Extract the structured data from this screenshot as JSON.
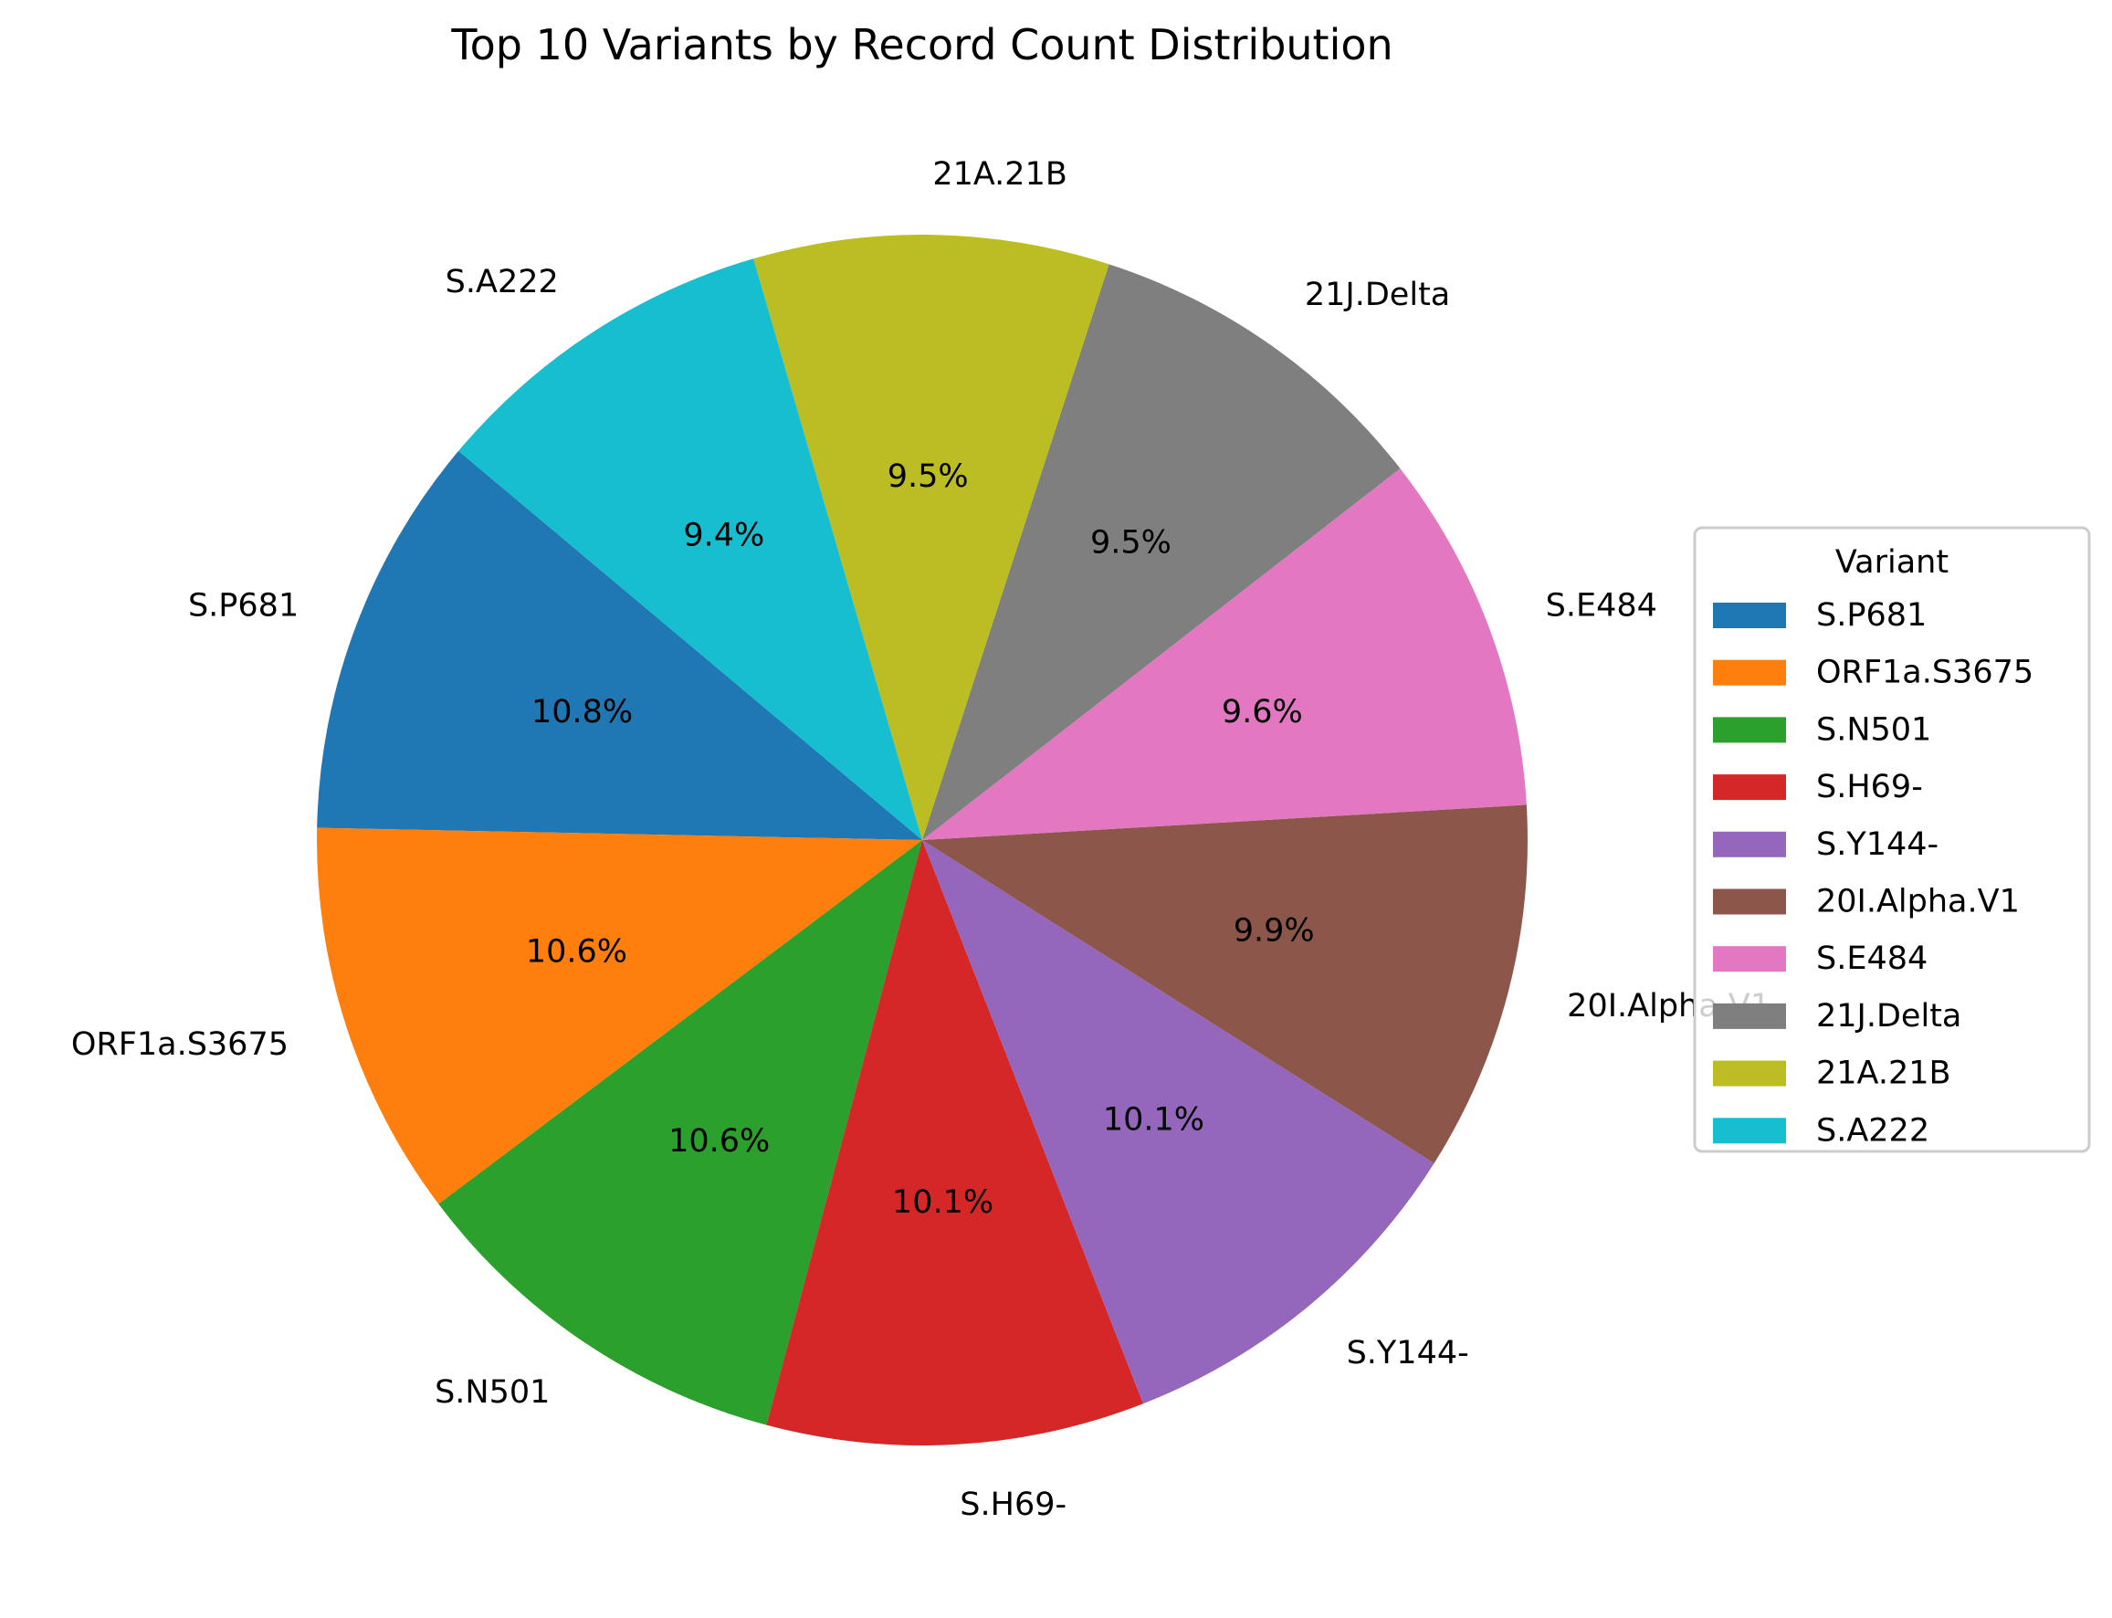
{
  "chart_data": {
    "type": "pie",
    "title": "Top 10 Variants by Record Count Distribution",
    "categories": [
      "S.P681",
      "ORF1a.S3675",
      "S.N501",
      "S.H69-",
      "S.Y144-",
      "20I.Alpha.V1",
      "S.E484",
      "21J.Delta",
      "21A.21B",
      "S.A222"
    ],
    "values": [
      10.8,
      10.6,
      10.6,
      10.1,
      10.1,
      9.9,
      9.6,
      9.5,
      9.5,
      9.4
    ],
    "percent_labels": [
      "10.8%",
      "10.6%",
      "10.6%",
      "10.1%",
      "10.1%",
      "9.9%",
      "9.6%",
      "9.5%",
      "9.5%",
      "9.4%"
    ],
    "colors": [
      "#1f77b4",
      "#ff7f0e",
      "#2ca02c",
      "#d62728",
      "#9467bd",
      "#8c564b",
      "#e377c2",
      "#7f7f7f",
      "#bcbd22",
      "#17becf"
    ],
    "start_angle_deg": 140,
    "direction": "counterclockwise",
    "legend": {
      "title": "Variant",
      "placement": "center-right"
    }
  }
}
